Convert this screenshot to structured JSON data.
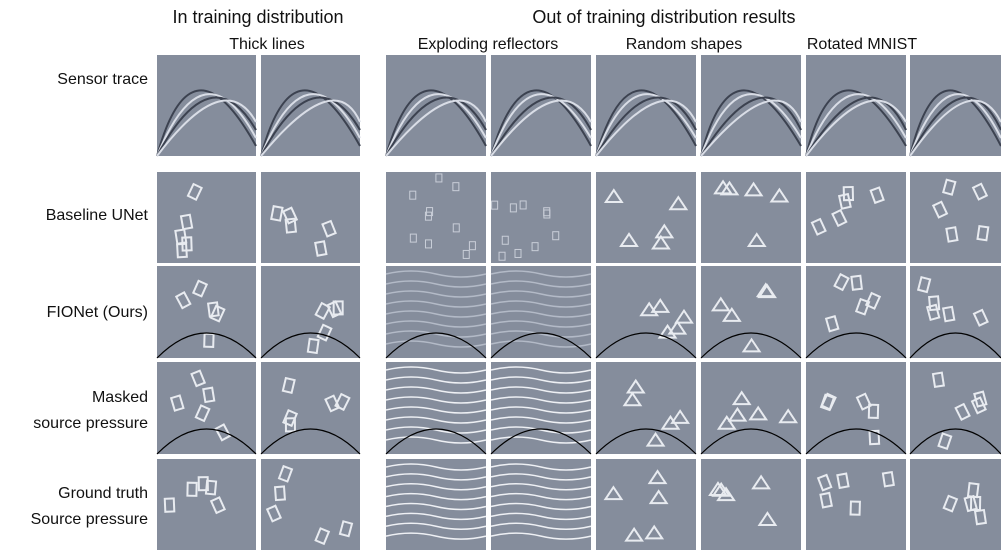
{
  "header": {
    "in_training": "In training distribution",
    "thick_lines": "Thick lines",
    "out_of_training": "Out of training distribution results",
    "exploding_reflectors": "Exploding reflectors",
    "random_shapes": "Random shapes",
    "rotated_mnist": "Rotated MNIST"
  },
  "rows": [
    [
      "Sensor trace"
    ],
    [
      "Baseline UNet"
    ],
    [
      "FIONet (Ours)"
    ],
    [
      "Masked",
      "source pressure"
    ],
    [
      "Ground truth",
      "Source pressure"
    ]
  ]
}
